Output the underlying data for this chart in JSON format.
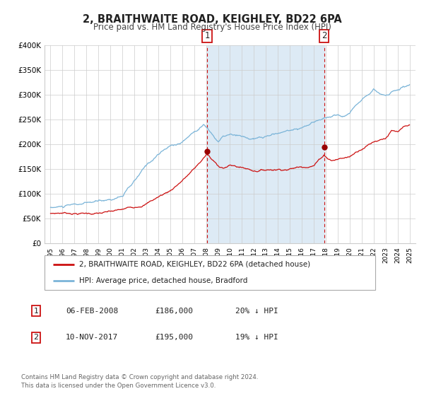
{
  "title": "2, BRAITHWAITE ROAD, KEIGHLEY, BD22 6PA",
  "subtitle": "Price paid vs. HM Land Registry's House Price Index (HPI)",
  "title_fontsize": 10.5,
  "subtitle_fontsize": 8.5,
  "hpi_color": "#7ab4d8",
  "price_color": "#cc1111",
  "marker_color": "#990000",
  "background_color": "#ffffff",
  "shade_color": "#ddeaf5",
  "grid_color": "#cccccc",
  "ylim": [
    0,
    400000
  ],
  "yticks": [
    0,
    50000,
    100000,
    150000,
    200000,
    250000,
    300000,
    350000,
    400000
  ],
  "ytick_labels": [
    "£0",
    "£50K",
    "£100K",
    "£150K",
    "£200K",
    "£250K",
    "£300K",
    "£350K",
    "£400K"
  ],
  "sale1_date": 2008.09,
  "sale1_price": 186000,
  "sale2_date": 2017.86,
  "sale2_price": 195000,
  "sale1_display_date": "06-FEB-2008",
  "sale1_display_price": "£186,000",
  "sale1_hpi_diff": "20% ↓ HPI",
  "sale2_display_date": "10-NOV-2017",
  "sale2_display_price": "£195,000",
  "sale2_hpi_diff": "19% ↓ HPI",
  "legend_label1": "2, BRAITHWAITE ROAD, KEIGHLEY, BD22 6PA (detached house)",
  "legend_label2": "HPI: Average price, detached house, Bradford",
  "footer_line1": "Contains HM Land Registry data © Crown copyright and database right 2024.",
  "footer_line2": "This data is licensed under the Open Government Licence v3.0."
}
